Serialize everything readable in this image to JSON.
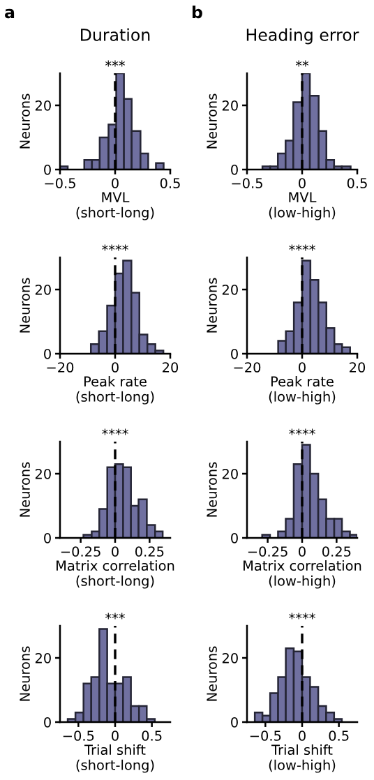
{
  "chart_data": [
    {
      "type": "histogram",
      "title": "***",
      "xlabel": "MVL\n(short-long)",
      "ylabel": "Neurons",
      "bins": [
        -0.5,
        -0.43,
        -0.28,
        -0.21,
        -0.14,
        -0.06,
        0.01,
        0.08,
        0.15,
        0.23,
        0.3,
        0.37,
        0.44
      ],
      "values": [
        1,
        0,
        3,
        3,
        10,
        14,
        30,
        22,
        12,
        5,
        0,
        2
      ],
      "color": "#7070a0",
      "xlim": [
        -0.5,
        0.5
      ],
      "xticks": [
        {
          "value": -0.5,
          "label": "−0.5"
        },
        0,
        0.5
      ],
      "ylim": [
        0,
        30
      ],
      "yticks": [
        0,
        20
      ],
      "ref_lines": [
        {
          "axis": "x",
          "value": 0,
          "color": "#000000",
          "line_style": "dashed"
        }
      ],
      "annotations": [
        "a",
        "Duration"
      ],
      "grid": false,
      "legend": false
    },
    {
      "type": "histogram",
      "title": "**",
      "xlabel": "MVL\n(low-high)",
      "ylabel": "Neurons",
      "bins": [
        -0.36,
        -0.29,
        -0.22,
        -0.15,
        -0.08,
        0.0,
        0.07,
        0.15,
        0.22,
        0.29,
        0.36,
        0.44
      ],
      "values": [
        1,
        1,
        5,
        9,
        21,
        30,
        23,
        12,
        3,
        1,
        1
      ],
      "color": "#7070a0",
      "xlim": [
        -0.5,
        0.5
      ],
      "xticks": [
        {
          "value": -0.5,
          "label": "−0.5"
        },
        0,
        0.5
      ],
      "ylim": [
        0,
        30
      ],
      "yticks": [
        0,
        20
      ],
      "ref_lines": [
        {
          "axis": "x",
          "value": 0,
          "color": "#000000",
          "line_style": "dashed"
        }
      ],
      "annotations": [
        "b",
        "Heading error"
      ],
      "grid": false,
      "legend": false
    },
    {
      "type": "histogram",
      "title": "****",
      "xlabel": "Peak rate\n(short-long)",
      "ylabel": "Neurons",
      "bins": [
        -8.8,
        -5.9,
        -2.9,
        0,
        2.9,
        5.9,
        8.8,
        11.7,
        14.6,
        17.5
      ],
      "values": [
        3,
        7,
        15,
        25,
        29,
        19,
        6,
        3,
        1
      ],
      "color": "#7070a0",
      "xlim": [
        -20,
        20
      ],
      "xticks": [
        {
          "value": -20,
          "label": "−20"
        },
        0,
        20
      ],
      "ylim": [
        0,
        30
      ],
      "yticks": [
        0,
        20
      ],
      "ref_lines": [
        {
          "axis": "x",
          "value": 0,
          "color": "#000000",
          "line_style": "dashed"
        }
      ],
      "grid": false,
      "legend": false
    },
    {
      "type": "histogram",
      "title": "****",
      "xlabel": "Peak rate\n(low-high)",
      "ylabel": "Neurons",
      "bins": [
        -8.7,
        -5.9,
        -3.0,
        0,
        3.0,
        5.9,
        8.8,
        11.7,
        14.5,
        17.4
      ],
      "values": [
        4,
        7,
        16,
        29,
        23,
        16,
        8,
        3,
        2
      ],
      "color": "#7070a0",
      "xlim": [
        -20,
        20
      ],
      "xticks": [
        {
          "value": -20,
          "label": "−20"
        },
        0,
        20
      ],
      "ylim": [
        0,
        30
      ],
      "yticks": [
        0,
        20
      ],
      "ref_lines": [
        {
          "axis": "x",
          "value": 0,
          "color": "#000000",
          "line_style": "dashed"
        }
      ],
      "grid": false,
      "legend": false
    },
    {
      "type": "histogram",
      "title": "****",
      "xlabel": "Matrix correlation\n(short-long)",
      "ylabel": "Neurons",
      "bins": [
        -0.23,
        -0.17,
        -0.115,
        -0.057,
        0.0,
        0.058,
        0.115,
        0.17,
        0.23,
        0.29,
        0.345
      ],
      "values": [
        1,
        2,
        9,
        22,
        23,
        22,
        10,
        12,
        4,
        2
      ],
      "color": "#7070a0",
      "xlim": [
        -0.4,
        0.4
      ],
      "xticks": [
        {
          "value": -0.25,
          "label": "−0.25"
        },
        0,
        0.25
      ],
      "ylim": [
        0,
        30
      ],
      "yticks": [
        0,
        20
      ],
      "ref_lines": [
        {
          "axis": "x",
          "value": 0,
          "color": "#000000",
          "line_style": "dashed"
        }
      ],
      "grid": false,
      "legend": false
    },
    {
      "type": "histogram",
      "title": "****",
      "xlabel": "Matrix correlation\n(low-high)",
      "ylabel": "Neurons",
      "bins": [
        -0.29,
        -0.233,
        -0.175,
        -0.119,
        -0.061,
        0.0,
        0.058,
        0.117,
        0.175,
        0.233,
        0.289,
        0.347,
        0.4
      ],
      "values": [
        1,
        0,
        2,
        6,
        23,
        29,
        20,
        12,
        6,
        6,
        2,
        1
      ],
      "color": "#7070a0",
      "xlim": [
        -0.4,
        0.4
      ],
      "xticks": [
        {
          "value": -0.25,
          "label": "−0.25"
        },
        0,
        0.25
      ],
      "ylim": [
        0,
        30
      ],
      "yticks": [
        0,
        20
      ],
      "ref_lines": [
        {
          "axis": "x",
          "value": 0,
          "color": "#000000",
          "line_style": "dashed"
        }
      ],
      "grid": false,
      "legend": false
    },
    {
      "type": "histogram",
      "title": "***",
      "xlabel": "Trial shift\n(short-long)",
      "ylabel": "Neurons",
      "bins": [
        -0.645,
        -0.54,
        -0.43,
        -0.325,
        -0.215,
        -0.108,
        0.0,
        0.108,
        0.215,
        0.325,
        0.43,
        0.54
      ],
      "values": [
        1,
        3,
        12,
        14,
        29,
        12,
        12,
        14,
        5,
        5,
        1
      ],
      "color": "#7070a0",
      "xlim": [
        -0.75,
        0.75
      ],
      "xticks": [
        {
          "value": -0.5,
          "label": "−0.5"
        },
        0,
        0.5
      ],
      "ylim": [
        0,
        30
      ],
      "yticks": [
        0,
        20
      ],
      "ref_lines": [
        {
          "axis": "x",
          "value": 0,
          "color": "#000000",
          "line_style": "dashed"
        }
      ],
      "grid": false,
      "legend": false
    },
    {
      "type": "histogram",
      "title": "****",
      "xlabel": "Trial shift\n(low-high)",
      "ylabel": "Neurons",
      "bins": [
        -0.644,
        -0.54,
        -0.435,
        -0.327,
        -0.222,
        -0.114,
        0.0,
        0.108,
        0.219,
        0.327,
        0.435,
        0.54
      ],
      "values": [
        3,
        2,
        9,
        14,
        23,
        22,
        14,
        11,
        5,
        3,
        1
      ],
      "color": "#7070a0",
      "xlim": [
        -0.75,
        0.75
      ],
      "xticks": [
        {
          "value": -0.5,
          "label": "−0.5"
        },
        0,
        0.5
      ],
      "ylim": [
        0,
        30
      ],
      "yticks": [
        0,
        20
      ],
      "ref_lines": [
        {
          "axis": "x",
          "value": 0,
          "color": "#000000",
          "line_style": "dashed"
        }
      ],
      "grid": false,
      "legend": false
    }
  ]
}
